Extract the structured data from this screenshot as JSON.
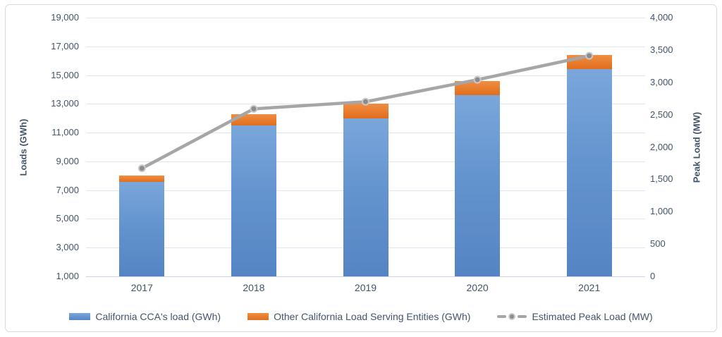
{
  "chart": {
    "background": "#FFFFFF",
    "border_color": "#D9D9D9",
    "text_color": "#44546A",
    "gridline_color": "#DFE6F1",
    "axis_line_color": "#CBD4E4"
  },
  "chart_data": {
    "type": "bar",
    "stacked": true,
    "grid": true,
    "legend_position": "bottom",
    "title": "",
    "categories": [
      "2017",
      "2018",
      "2019",
      "2020",
      "2021"
    ],
    "series": [
      {
        "name": "California CCA's load (GWh)",
        "type": "bar",
        "axis": "left",
        "color": "#6494CE",
        "color_light": "#7AA6DB",
        "color_dark": "#5584C4",
        "values": [
          7570,
          11500,
          12000,
          13600,
          15400
        ]
      },
      {
        "name": "Other California Load Serving Entities (GWh)",
        "type": "bar",
        "axis": "left",
        "color": "#ED7D31",
        "color_light": "#F18D42",
        "color_dark": "#E06E1D",
        "values": [
          430,
          800,
          1000,
          1000,
          1000
        ]
      },
      {
        "name": "Estimated Peak Load (MW)",
        "type": "line",
        "axis": "right",
        "color": "#A6A6A6",
        "marker_fill": "#8C8C8C",
        "marker_stroke": "#C9C9C9",
        "values": [
          1670,
          2590,
          2700,
          3040,
          3410
        ]
      }
    ],
    "left_axis": {
      "title": "Loads (GWh)",
      "min": 1000,
      "max": 19000,
      "step": 2000,
      "tick_labels": [
        "1,000",
        "3,000",
        "5,000",
        "7,000",
        "9,000",
        "11,000",
        "13,000",
        "15,000",
        "17,000",
        "19,000"
      ]
    },
    "right_axis": {
      "title": "Peak Load (MW)",
      "min": 0,
      "max": 4000,
      "step": 500,
      "tick_labels": [
        "0",
        "500",
        "1,000",
        "1,500",
        "2,000",
        "2,500",
        "3,000",
        "3,500",
        "4,000"
      ]
    }
  }
}
